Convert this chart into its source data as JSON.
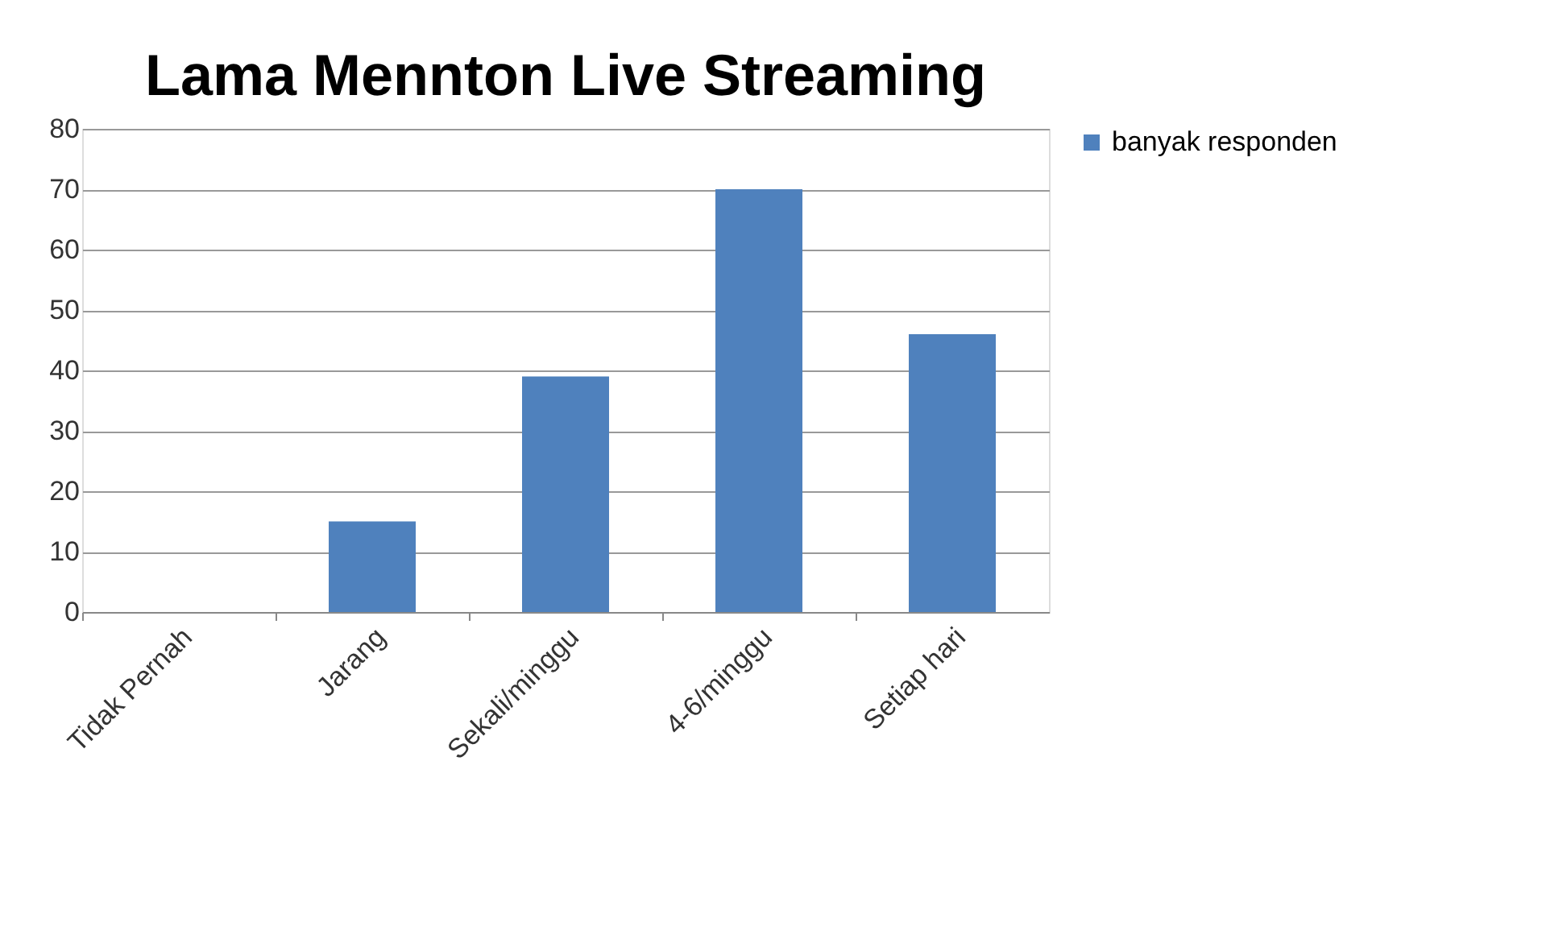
{
  "chart_data": {
    "type": "bar",
    "title": "Lama Mennton Live Streaming",
    "categories": [
      "Tidak Pernah",
      "Jarang",
      "Sekali/minggu",
      "4-6/minggu",
      "Setiap hari"
    ],
    "series": [
      {
        "name": "banyak responden",
        "color": "#4f81bd",
        "values": [
          0,
          15,
          39,
          70,
          46
        ]
      }
    ],
    "ylim": [
      0,
      80
    ],
    "yticks": [
      0,
      10,
      20,
      30,
      40,
      50,
      60,
      70,
      80
    ],
    "grid": "y",
    "legend": "right"
  }
}
